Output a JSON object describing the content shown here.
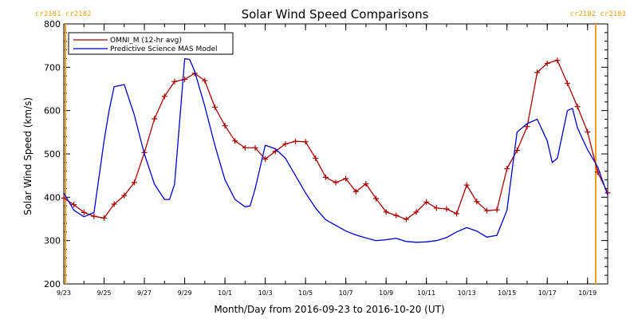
{
  "chart_data": {
    "type": "line",
    "title": "Solar Wind Speed Comparisons",
    "xlabel": "Month/Day from 2016-09-23 to 2016-10-20 (UT)",
    "ylabel": "Solar Wind Speed (km/s)",
    "xlim": [
      "2016-09-23",
      "2016-10-20"
    ],
    "ylim": [
      200,
      800
    ],
    "yticks": [
      200,
      300,
      400,
      500,
      600,
      700,
      800
    ],
    "xtick_labels": [
      "9/23",
      "9/25",
      "9/27",
      "9/29",
      "10/1",
      "10/3",
      "10/5",
      "10/7",
      "10/9",
      "10/11",
      "10/13",
      "10/15",
      "10/17",
      "10/19"
    ],
    "xtick_dates": [
      "2016-09-23",
      "2016-09-25",
      "2016-09-27",
      "2016-09-29",
      "2016-10-01",
      "2016-10-03",
      "2016-10-05",
      "2016-10-07",
      "2016-10-09",
      "2016-10-11",
      "2016-10-13",
      "2016-10-15",
      "2016-10-17",
      "2016-10-19"
    ],
    "rotation_markers": {
      "left": {
        "label": "cr2181  cr2182",
        "date": "2016-09-23"
      },
      "right": {
        "label": "cr2182  cr2183",
        "date": "2016-10-20"
      },
      "color": "#f0a020"
    },
    "legend": {
      "placement": "top-left"
    },
    "series": [
      {
        "name": "OMNI_M (12-hr avg)",
        "color": "#aa0000",
        "marker": "plus",
        "x": [
          "2016-09-23 00:00",
          "2016-09-23 12:00",
          "2016-09-24 00:00",
          "2016-09-24 12:00",
          "2016-09-25 00:00",
          "2016-09-25 12:00",
          "2016-09-26 00:00",
          "2016-09-26 12:00",
          "2016-09-27 00:00",
          "2016-09-27 12:00",
          "2016-09-28 00:00",
          "2016-09-28 12:00",
          "2016-09-29 00:00",
          "2016-09-29 12:00",
          "2016-09-30 00:00",
          "2016-09-30 12:00",
          "2016-10-01 00:00",
          "2016-10-01 12:00",
          "2016-10-02 00:00",
          "2016-10-02 12:00",
          "2016-10-03 00:00",
          "2016-10-03 12:00",
          "2016-10-04 00:00",
          "2016-10-04 12:00",
          "2016-10-05 00:00",
          "2016-10-05 12:00",
          "2016-10-06 00:00",
          "2016-10-06 12:00",
          "2016-10-07 00:00",
          "2016-10-07 12:00",
          "2016-10-08 00:00",
          "2016-10-08 12:00",
          "2016-10-09 00:00",
          "2016-10-09 12:00",
          "2016-10-10 00:00",
          "2016-10-10 12:00",
          "2016-10-11 00:00",
          "2016-10-11 12:00",
          "2016-10-12 00:00",
          "2016-10-12 12:00",
          "2016-10-13 00:00",
          "2016-10-13 12:00",
          "2016-10-14 00:00",
          "2016-10-14 12:00",
          "2016-10-15 00:00",
          "2016-10-15 12:00",
          "2016-10-16 00:00",
          "2016-10-16 12:00",
          "2016-10-17 00:00",
          "2016-10-17 12:00",
          "2016-10-18 00:00",
          "2016-10-18 12:00",
          "2016-10-19 00:00",
          "2016-10-19 12:00",
          "2016-10-20 00:00"
        ],
        "y": [
          398,
          383,
          365,
          356,
          352,
          384,
          404,
          434,
          503,
          581,
          633,
          667,
          672,
          686,
          669,
          608,
          565,
          530,
          514,
          514,
          488,
          506,
          523,
          529,
          528,
          490,
          446,
          434,
          443,
          413,
          431,
          397,
          366,
          358,
          349,
          366,
          389,
          375,
          373,
          362,
          428,
          390,
          369,
          371,
          466,
          508,
          563,
          688,
          709,
          716,
          663,
          609,
          551,
          458,
          410
        ]
      },
      {
        "name": "Predictive Science MAS Model",
        "color": "#0000cc",
        "marker": "none",
        "x": [
          "2016-09-23 00:00",
          "2016-09-23 12:00",
          "2016-09-24 00:00",
          "2016-09-24 12:00",
          "2016-09-25 00:00",
          "2016-09-25 06:00",
          "2016-09-25 12:00",
          "2016-09-26 00:00",
          "2016-09-26 12:00",
          "2016-09-27 00:00",
          "2016-09-27 12:00",
          "2016-09-28 00:00",
          "2016-09-28 06:00",
          "2016-09-28 12:00",
          "2016-09-29 00:00",
          "2016-09-29 06:00",
          "2016-09-29 12:00",
          "2016-09-30 00:00",
          "2016-09-30 12:00",
          "2016-10-01 00:00",
          "2016-10-01 12:00",
          "2016-10-02 00:00",
          "2016-10-02 06:00",
          "2016-10-02 12:00",
          "2016-10-03 00:00",
          "2016-10-03 12:00",
          "2016-10-04 00:00",
          "2016-10-04 12:00",
          "2016-10-05 00:00",
          "2016-10-05 12:00",
          "2016-10-06 00:00",
          "2016-10-06 12:00",
          "2016-10-07 00:00",
          "2016-10-07 12:00",
          "2016-10-08 00:00",
          "2016-10-08 12:00",
          "2016-10-09 00:00",
          "2016-10-09 12:00",
          "2016-10-10 00:00",
          "2016-10-10 12:00",
          "2016-10-11 00:00",
          "2016-10-11 12:00",
          "2016-10-12 00:00",
          "2016-10-12 12:00",
          "2016-10-13 00:00",
          "2016-10-13 12:00",
          "2016-10-14 00:00",
          "2016-10-14 12:00",
          "2016-10-15 00:00",
          "2016-10-15 12:00",
          "2016-10-16 00:00",
          "2016-10-16 12:00",
          "2016-10-17 00:00",
          "2016-10-17 06:00",
          "2016-10-17 12:00",
          "2016-10-18 00:00",
          "2016-10-18 06:00",
          "2016-10-18 12:00",
          "2016-10-19 00:00",
          "2016-10-19 12:00",
          "2016-10-20 00:00"
        ],
        "y": [
          410,
          370,
          355,
          365,
          530,
          600,
          655,
          660,
          590,
          500,
          430,
          395,
          395,
          430,
          720,
          718,
          690,
          610,
          520,
          440,
          395,
          378,
          380,
          420,
          520,
          512,
          490,
          450,
          410,
          375,
          348,
          335,
          322,
          313,
          306,
          300,
          302,
          305,
          298,
          296,
          297,
          300,
          307,
          320,
          330,
          322,
          308,
          312,
          370,
          550,
          570,
          580,
          530,
          480,
          490,
          600,
          605,
          560,
          510,
          470,
          405
        ]
      }
    ]
  }
}
